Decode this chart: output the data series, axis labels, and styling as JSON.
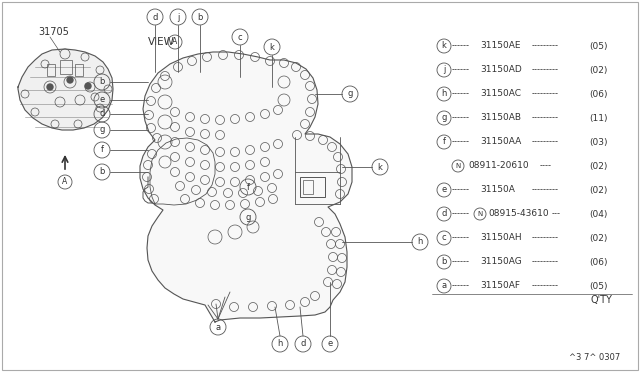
{
  "bg_color": "#ffffff",
  "line_color": "#555555",
  "text_color": "#333333",
  "footer": "^3 7^ 0307",
  "part_label": "31705",
  "qty_label": "Q'TY",
  "parts": [
    {
      "letter": "a",
      "part": "31150AF",
      "qty": "(05)",
      "indent": false
    },
    {
      "letter": "b",
      "part": "31150AG",
      "qty": "(06)",
      "indent": false
    },
    {
      "letter": "c",
      "part": "31150AH",
      "qty": "(02)",
      "indent": false
    },
    {
      "letter": "d",
      "part": "08915-43610",
      "qty": "(04)",
      "indent": false,
      "prefix_N": true
    },
    {
      "letter": "e",
      "part": "31150A",
      "qty": "(02)",
      "indent": false
    },
    {
      "letter": "N",
      "part": "08911-20610",
      "qty": "(02)",
      "indent": true
    },
    {
      "letter": "f",
      "part": "31150AA",
      "qty": "(03)",
      "indent": false
    },
    {
      "letter": "g",
      "part": "31150AB",
      "qty": "(11)",
      "indent": false
    },
    {
      "letter": "h",
      "part": "31150AC",
      "qty": "(06)",
      "indent": false
    },
    {
      "letter": "j",
      "part": "31150AD",
      "qty": "(02)",
      "indent": false
    },
    {
      "letter": "k",
      "part": "31150AE",
      "qty": "(05)",
      "indent": false
    }
  ]
}
